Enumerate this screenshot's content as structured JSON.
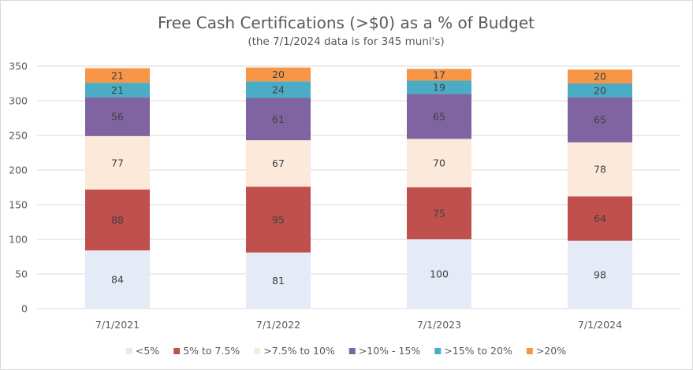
{
  "chart_data": {
    "type": "bar",
    "stacked": true,
    "title": "Free Cash Certifications (>$0) as a % of Budget",
    "subtitle": "(the 7/1/2024 data is for 345 muni's)",
    "xlabel": "",
    "ylabel": "",
    "ylim": [
      0,
      350
    ],
    "yticks": [
      0,
      50,
      100,
      150,
      200,
      250,
      300,
      350
    ],
    "grid": true,
    "legend_position": "bottom",
    "categories": [
      "7/1/2021",
      "7/1/2022",
      "7/1/2023",
      "7/1/2024"
    ],
    "series": [
      {
        "name": "<5%",
        "color": "#e4eaf6",
        "values": [
          84,
          81,
          100,
          98
        ]
      },
      {
        "name": "5% to 7.5%",
        "color": "#c0504d",
        "values": [
          88,
          95,
          75,
          64
        ]
      },
      {
        "name": ">7.5% to 10%",
        "color": "#fde9d9",
        "values": [
          77,
          67,
          70,
          78
        ]
      },
      {
        "name": ">10% - 15%",
        "color": "#8064a2",
        "values": [
          56,
          61,
          65,
          65
        ]
      },
      {
        "name": ">15% to 20%",
        "color": "#4bacc6",
        "values": [
          21,
          24,
          19,
          20
        ]
      },
      {
        "name": ">20%",
        "color": "#f79646",
        "values": [
          21,
          20,
          17,
          20
        ]
      }
    ]
  }
}
